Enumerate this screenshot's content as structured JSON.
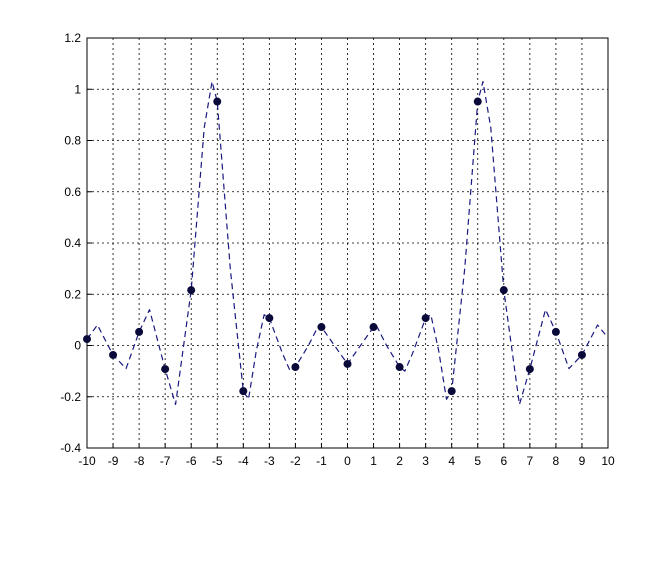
{
  "chart_data": {
    "type": "line",
    "xlim": [
      -10,
      10
    ],
    "ylim": [
      -0.4,
      1.2
    ],
    "xticks": [
      -10,
      -9,
      -8,
      -7,
      -6,
      -5,
      -4,
      -3,
      -2,
      -1,
      0,
      1,
      2,
      3,
      4,
      5,
      6,
      7,
      8,
      9,
      10
    ],
    "yticks": [
      -0.4,
      -0.2,
      0,
      0.2,
      0.4,
      0.6,
      0.8,
      1,
      1.2
    ],
    "grid": true,
    "series": [
      {
        "color": "#1a1a80",
        "style": "dashed",
        "x": [
          -10,
          -9.6,
          -9,
          -8.5,
          -8,
          -7.6,
          -7,
          -6.6,
          -6,
          -5.5,
          -5.2,
          -5,
          -4.5,
          -4,
          -3.8,
          -3.5,
          -3.2,
          -3,
          -2.5,
          -2.2,
          -2,
          -1.5,
          -1.1,
          -1,
          -0.5,
          0,
          0.5,
          1,
          1.1,
          1.5,
          2,
          2.2,
          2.5,
          3,
          3.2,
          3.5,
          3.8,
          4,
          4.5,
          5,
          5.2,
          5.5,
          6,
          6.6,
          7,
          7.6,
          8,
          8.5,
          9,
          9.6,
          10
        ],
        "values": [
          0.025,
          0.08,
          -0.037,
          -0.09,
          0.053,
          0.14,
          -0.092,
          -0.23,
          0.216,
          0.85,
          1.03,
          0.952,
          0.3,
          -0.178,
          -0.21,
          -0.02,
          0.12,
          0.107,
          -0.03,
          -0.1,
          -0.084,
          0.0,
          0.08,
          0.072,
          0.0,
          -0.072,
          0.0,
          0.072,
          0.08,
          0.0,
          -0.084,
          -0.1,
          -0.03,
          0.107,
          0.12,
          -0.02,
          -0.21,
          -0.178,
          0.3,
          0.952,
          1.03,
          0.85,
          0.216,
          -0.23,
          -0.092,
          0.14,
          0.053,
          -0.09,
          -0.037,
          0.08,
          0.03
        ]
      },
      {
        "color": "#0a0a3a",
        "marker": "dot",
        "x": [
          -10,
          -9,
          -8,
          -7,
          -6,
          -5,
          -4,
          -3,
          -2,
          -1,
          0,
          1,
          2,
          3,
          4,
          5,
          6,
          7,
          8,
          9
        ],
        "values": [
          0.025,
          -0.037,
          0.053,
          -0.092,
          0.216,
          0.952,
          -0.178,
          0.107,
          -0.084,
          0.072,
          -0.072,
          0.072,
          -0.084,
          0.107,
          -0.178,
          0.952,
          0.216,
          -0.092,
          0.053,
          -0.037
        ]
      }
    ]
  }
}
